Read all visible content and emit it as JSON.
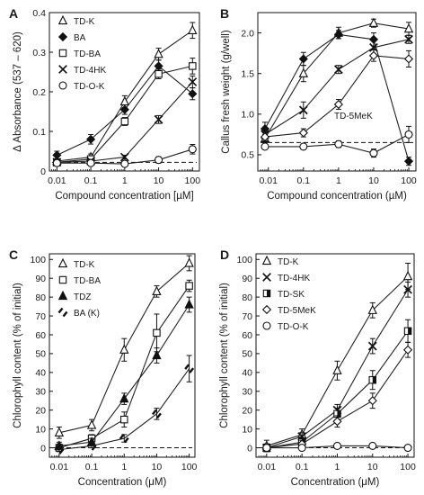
{
  "figure": {
    "panels": [
      "A",
      "B",
      "C",
      "D"
    ]
  },
  "chart_data": [
    {
      "panel": "A",
      "type": "line",
      "log_x": true,
      "xlabel": "Compound concentration [µM]",
      "ylabel": "Δ Absorbance (537 – 620)",
      "xlim": [
        0.006,
        160
      ],
      "ylim": [
        0,
        0.4
      ],
      "xticks": [
        0.01,
        0.1,
        1,
        10,
        100
      ],
      "xticklabels": [
        "0.01",
        "0.1",
        "1",
        "10",
        "100"
      ],
      "yticks": [
        0,
        0.1,
        0.2,
        0.3,
        0.4
      ],
      "yticklabels": [
        "0",
        "0.1",
        "0.2",
        "0.3",
        "0.4"
      ],
      "legend_position": "top-left",
      "baseline": 0.022,
      "x": [
        0.01,
        0.1,
        1,
        10,
        100
      ],
      "series": [
        {
          "name": "TD-K",
          "marker": "triangle-open",
          "values": [
            0.025,
            0.035,
            0.175,
            0.295,
            0.355
          ],
          "err": [
            0.006,
            0.008,
            0.015,
            0.015,
            0.02
          ]
        },
        {
          "name": "BA",
          "marker": "diamond-filled",
          "values": [
            0.04,
            0.08,
            0.155,
            0.265,
            0.195
          ],
          "err": [
            0.01,
            0.012,
            0.012,
            0.015,
            0.015
          ]
        },
        {
          "name": "TD-BA",
          "marker": "square-open",
          "values": [
            0.022,
            0.03,
            0.125,
            0.245,
            0.265
          ],
          "err": [
            0.004,
            0.005,
            0.01,
            0.012,
            0.02
          ]
        },
        {
          "name": "TD-4HK",
          "marker": "x",
          "values": [
            0.022,
            0.025,
            0.035,
            0.13,
            0.225
          ],
          "err": [
            0.003,
            0.004,
            0.005,
            0.01,
            0.015
          ]
        },
        {
          "name": "TD-O-K",
          "marker": "circle-open",
          "values": [
            0.02,
            0.02,
            0.018,
            0.028,
            0.055
          ],
          "err": [
            0.003,
            0.003,
            0.003,
            0.008,
            0.012
          ]
        }
      ]
    },
    {
      "panel": "B",
      "type": "line",
      "log_x": true,
      "xlabel": "Compound concentration (µM)",
      "ylabel": "Callus fresh weight (g/well)",
      "xlim": [
        0.005,
        160
      ],
      "ylim": [
        0.3,
        2.25
      ],
      "xticks": [
        0.01,
        0.1,
        1,
        10,
        100
      ],
      "xticklabels": [
        "0.01",
        "0.1",
        "1",
        "10",
        "100"
      ],
      "yticks": [
        0.5,
        1.0,
        1.5,
        2.0
      ],
      "yticklabels": [
        "0.5",
        "1.0",
        "1.5",
        "2.0"
      ],
      "baseline": 0.65,
      "annotation": "TD-5MeK",
      "x": [
        0.008,
        0.1,
        1,
        10,
        100
      ],
      "series": [
        {
          "name": "TD-K",
          "marker": "triangle-open",
          "values": [
            0.7,
            1.5,
            2.0,
            2.12,
            2.05
          ],
          "err": [
            0.05,
            0.1,
            0.07,
            0.05,
            0.08
          ]
        },
        {
          "name": "BA",
          "marker": "diamond-filled",
          "values": [
            0.82,
            1.68,
            1.98,
            1.92,
            0.42
          ],
          "err": [
            0.08,
            0.08,
            0.05,
            0.08,
            0.05
          ]
        },
        {
          "name": "TD-4HK",
          "marker": "x",
          "values": [
            0.75,
            1.05,
            1.55,
            1.82,
            1.92
          ],
          "err": [
            0.06,
            0.1,
            0.05,
            0.08,
            0.05
          ]
        },
        {
          "name": "TD-5MeK",
          "marker": "diamond-open",
          "values": [
            0.72,
            0.77,
            1.12,
            1.72,
            1.68
          ],
          "err": [
            0.05,
            0.05,
            0.06,
            0.07,
            0.1
          ]
        },
        {
          "name": "TD-O-K",
          "marker": "circle-open",
          "values": [
            0.6,
            0.6,
            0.63,
            0.52,
            0.75
          ],
          "err": [
            0.03,
            0.03,
            0.04,
            0.05,
            0.1
          ]
        }
      ]
    },
    {
      "panel": "C",
      "type": "line",
      "log_x": true,
      "xlabel": "Concentration (μM)",
      "ylabel": "Chlorophyll content (% of initial)",
      "xlim": [
        0.005,
        150
      ],
      "ylim": [
        -5,
        103
      ],
      "xticks": [
        0.01,
        0.1,
        1,
        10,
        100
      ],
      "xticklabels": [
        "0.01",
        "0.1",
        "1",
        "10",
        "100"
      ],
      "yticks": [
        0,
        10,
        20,
        30,
        40,
        50,
        60,
        70,
        80,
        90,
        100
      ],
      "yticklabels": [
        "0",
        "10",
        "20",
        "30",
        "40",
        "50",
        "60",
        "70",
        "80",
        "90",
        "100"
      ],
      "legend_position": "top-left",
      "baseline": 0,
      "x": [
        0.01,
        0.1,
        1,
        10,
        100
      ],
      "series": [
        {
          "name": "TD-K",
          "marker": "triangle-open",
          "values": [
            8,
            12,
            52,
            83,
            98
          ],
          "err": [
            3,
            3,
            6,
            3,
            4
          ]
        },
        {
          "name": "TD-BA",
          "marker": "square-open",
          "values": [
            0,
            5,
            15,
            61,
            86
          ],
          "err": [
            2,
            2,
            4,
            10,
            3
          ]
        },
        {
          "name": "TDZ",
          "marker": "triangle-filled",
          "values": [
            1,
            3,
            26,
            49,
            76
          ],
          "err": [
            2,
            2,
            3,
            4,
            4
          ]
        },
        {
          "name": "BA (K)",
          "marker": "slash",
          "values": [
            -1,
            1,
            5,
            18,
            42
          ],
          "err": [
            1,
            1,
            2,
            3,
            7
          ]
        }
      ]
    },
    {
      "panel": "D",
      "type": "line",
      "log_x": true,
      "xlabel": "Concentration (μM)",
      "ylabel": "Chlorophyll content (% of initial)",
      "xlim": [
        0.005,
        150
      ],
      "ylim": [
        -5,
        103
      ],
      "xticks": [
        0.01,
        0.1,
        1,
        10,
        100
      ],
      "xticklabels": [
        "0.01",
        "0.1",
        "1",
        "10",
        "100"
      ],
      "yticks": [
        0,
        10,
        20,
        30,
        40,
        50,
        60,
        70,
        80,
        90,
        100
      ],
      "yticklabels": [
        "0",
        "10",
        "20",
        "30",
        "40",
        "50",
        "60",
        "70",
        "80",
        "90",
        "100"
      ],
      "legend_position": "top-left",
      "baseline": 0,
      "x": [
        0.01,
        0.1,
        1,
        10,
        100
      ],
      "series": [
        {
          "name": "TD-K",
          "marker": "triangle-open",
          "values": [
            1,
            7,
            41,
            73,
            91
          ],
          "err": [
            3,
            3,
            5,
            4,
            7
          ]
        },
        {
          "name": "TD-4HK",
          "marker": "x",
          "values": [
            0,
            6,
            20,
            54,
            84
          ],
          "err": [
            2,
            2,
            3,
            4,
            4
          ]
        },
        {
          "name": "TD-SK",
          "marker": "square-half",
          "values": [
            0,
            3,
            18,
            36,
            62
          ],
          "err": [
            2,
            2,
            3,
            5,
            6
          ]
        },
        {
          "name": "TD-5MeK",
          "marker": "diamond-open",
          "values": [
            0,
            2,
            14,
            25,
            52
          ],
          "err": [
            2,
            2,
            3,
            4,
            4
          ]
        },
        {
          "name": "TD-O-K",
          "marker": "circle-open",
          "values": [
            0,
            0,
            1,
            1,
            0
          ],
          "err": [
            1,
            1,
            1,
            1,
            1
          ]
        }
      ]
    }
  ]
}
